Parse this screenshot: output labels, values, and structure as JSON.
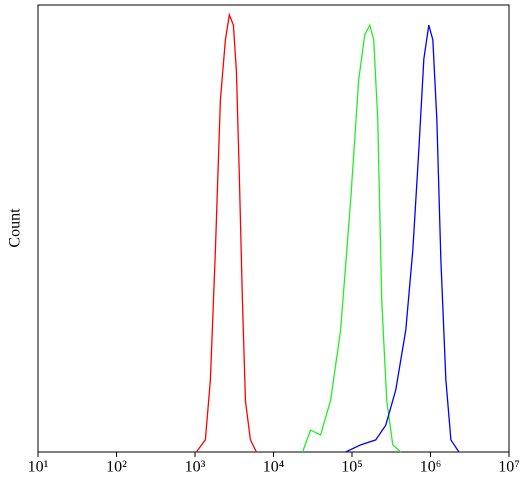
{
  "chart_data": {
    "type": "line",
    "y_label": "Count",
    "xlog": true,
    "xlim": [
      10,
      10000000
    ],
    "ylim": [
      0,
      100
    ],
    "xticks": [
      {
        "value": 10,
        "label": "10¹"
      },
      {
        "value": 100,
        "label": "10²"
      },
      {
        "value": 1000,
        "label": "10³"
      },
      {
        "value": 10000,
        "label": "10⁴"
      },
      {
        "value": 100000,
        "label": "10⁵"
      },
      {
        "value": 1000000,
        "label": "10⁶"
      },
      {
        "value": 10000000,
        "label": "10⁷"
      }
    ],
    "series": [
      {
        "color": "#ff0000",
        "x": [
          1040,
          1355,
          1570,
          1820,
          2105,
          2440,
          2740,
          3085,
          3370,
          3685,
          4020,
          4395,
          5085,
          6065
        ],
        "values": [
          0,
          2.7,
          16.1,
          45.2,
          78.7,
          92.2,
          97.8,
          95.5,
          85.2,
          60.6,
          33.8,
          11.4,
          2.7,
          0
        ]
      },
      {
        "color": "#22ee22",
        "x": [
          23440,
          29650,
          39800,
          53450,
          71650,
          96200,
          121600,
          145200,
          168200,
          189200,
          212800,
          239400,
          277300,
          330500,
          418000
        ],
        "values": [
          0,
          4.9,
          3.8,
          11.6,
          27.3,
          56.4,
          83.2,
          93.3,
          95.5,
          92.2,
          74.3,
          33.8,
          11.4,
          1.6,
          0
        ]
      },
      {
        "color": "#0000ff",
        "x": [
          83000,
          129100,
          200500,
          269000,
          361200,
          484600,
          595500,
          710400,
          822400,
          952000,
          1071000,
          1205000,
          1355000,
          1570000,
          1820000,
          2303000
        ],
        "values": [
          0,
          1.6,
          2.7,
          6.0,
          13.9,
          27.3,
          45.2,
          67.6,
          87.9,
          95.5,
          92.2,
          74.3,
          43.0,
          16.1,
          2.7,
          0
        ]
      }
    ]
  }
}
